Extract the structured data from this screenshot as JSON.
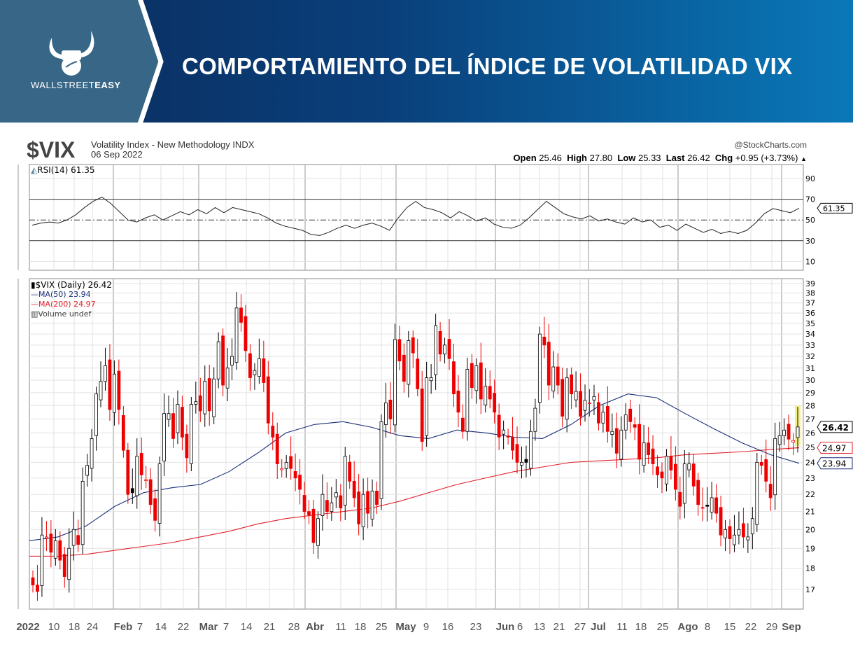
{
  "header": {
    "brand_light": "WALLSTREET",
    "brand_bold": "EASY",
    "title": "COMPORTAMIENTO DEL ÍNDICE DE VOLATILIDAD VIX"
  },
  "chart_info": {
    "symbol": "$VIX",
    "description": "Volatility Index - New Methodology INDX",
    "date": "06 Sep 2022",
    "source": "@StockCharts.com",
    "open_label": "Open",
    "open": "25.46",
    "high_label": "High",
    "high": "27.80",
    "low_label": "Low",
    "low": "25.33",
    "last_label": "Last",
    "last": "26.42",
    "chg_label": "Chg",
    "chg": "+0.95 (+3.73%)",
    "chg_arrow": "▲"
  },
  "colors": {
    "up": "#000000",
    "down": "#ee0000",
    "ma50": "#1a2f7a",
    "ma200": "#e0202a",
    "rsi": "#222222",
    "highlight": "#f3f08a"
  },
  "chart_data": [
    {
      "type": "line",
      "title": "RSI(14) 61.35",
      "legend": "RSI(14) 61.35",
      "ylim": [
        0,
        100
      ],
      "yticks": [
        90,
        70,
        50,
        30,
        10
      ],
      "reference_lines": [
        70,
        50,
        30
      ],
      "last_value": "61.35",
      "values": [
        45,
        47,
        48,
        47,
        50,
        55,
        62,
        68,
        72,
        66,
        58,
        50,
        48,
        52,
        55,
        50,
        54,
        58,
        55,
        60,
        56,
        62,
        57,
        62,
        60,
        58,
        56,
        52,
        47,
        44,
        42,
        40,
        36,
        35,
        38,
        42,
        45,
        42,
        45,
        47,
        44,
        40,
        52,
        62,
        68,
        62,
        60,
        57,
        52,
        58,
        54,
        49,
        52,
        46,
        43,
        42,
        45,
        52,
        60,
        68,
        62,
        56,
        53,
        51,
        54,
        49,
        51,
        48,
        46,
        52,
        48,
        50,
        43,
        45,
        40,
        46,
        42,
        38,
        41,
        37,
        39,
        37,
        40,
        47,
        56,
        61,
        59,
        57,
        61.35
      ]
    },
    {
      "type": "candlestick",
      "title": "$VIX (Daily) 26.42",
      "legend": [
        "$VIX (Daily) 26.42",
        "MA(50) 23.94",
        "MA(200) 24.97",
        "Volume undef"
      ],
      "ylim": [
        16.5,
        39.5
      ],
      "yscale": "log",
      "yticks": [
        39,
        38,
        37,
        36,
        35,
        34,
        33,
        32,
        31,
        30,
        29,
        28,
        27,
        26,
        25,
        24,
        23,
        22,
        21,
        20,
        19,
        18,
        17
      ],
      "xtick_labels": [
        {
          "t": "2022",
          "b": true
        },
        {
          "t": "10"
        },
        {
          "t": "18"
        },
        {
          "t": "24"
        },
        {
          "t": "Feb",
          "b": true
        },
        {
          "t": "7"
        },
        {
          "t": "14"
        },
        {
          "t": "22"
        },
        {
          "t": "Mar",
          "b": true
        },
        {
          "t": "7"
        },
        {
          "t": "14"
        },
        {
          "t": "21"
        },
        {
          "t": "28"
        },
        {
          "t": "Abr",
          "b": true
        },
        {
          "t": "11"
        },
        {
          "t": "18"
        },
        {
          "t": "25"
        },
        {
          "t": "May",
          "b": true
        },
        {
          "t": "9"
        },
        {
          "t": "16"
        },
        {
          "t": "23"
        },
        {
          "t": "Jun",
          "b": true
        },
        {
          "t": "6"
        },
        {
          "t": "13"
        },
        {
          "t": "21"
        },
        {
          "t": "27"
        },
        {
          "t": "Jul",
          "b": true
        },
        {
          "t": "11"
        },
        {
          "t": "18"
        },
        {
          "t": "25"
        },
        {
          "t": "Ago",
          "b": true
        },
        {
          "t": "8"
        },
        {
          "t": "15"
        },
        {
          "t": "22"
        },
        {
          "t": "29"
        },
        {
          "t": "Sep",
          "b": true
        }
      ],
      "close": [
        17.2,
        16.9,
        19.7,
        19.6,
        18.8,
        19.4,
        18.4,
        17.6,
        19.0,
        20.0,
        19.2,
        22.8,
        23.8,
        25.6,
        28.9,
        29.9,
        31.2,
        27.7,
        30.5,
        27.7,
        24.8,
        22.0,
        22.1,
        24.4,
        23.2,
        22.9,
        21.4,
        20.5,
        23.9,
        27.4,
        27.4,
        25.6,
        28.1,
        25.7,
        24.3,
        28.1,
        28.3,
        27.6,
        29.9,
        27.6,
        30.1,
        33.3,
        29.6,
        31.0,
        32.0,
        36.5,
        35.1,
        32.5,
        30.2,
        30.8,
        31.8,
        29.8,
        26.7,
        25.7,
        23.9,
        23.6,
        24.0,
        23.6,
        23.0,
        22.3,
        21.0,
        20.8,
        19.3,
        20.6,
        22.0,
        21.0,
        21.5,
        22.1,
        21.2,
        24.4,
        22.8,
        21.8,
        20.3,
        22.0,
        20.9,
        22.2,
        21.4,
        26.8,
        28.2,
        27.0,
        33.5,
        31.6,
        29.9,
        33.4,
        32.3,
        29.3,
        25.4,
        30.2,
        30.2,
        34.8,
        32.2,
        33.0,
        31.8,
        28.9,
        27.5,
        26.1,
        30.9,
        29.4,
        31.2,
        28.5,
        29.5,
        28.5,
        27.5,
        25.7,
        26.2,
        25.7,
        24.8,
        24.0,
        24.0,
        24.0,
        26.1,
        27.8,
        34.0,
        33.0,
        29.6,
        31.1,
        29.6,
        27.2,
        30.2,
        28.9,
        29.1,
        27.2,
        28.4,
        28.2,
        28.7,
        26.7,
        27.5,
        26.1,
        26.1,
        24.6,
        26.2,
        27.3,
        26.8,
        26.4,
        24.2,
        25.3,
        24.5,
        23.9,
        23.2,
        23.0,
        24.4,
        23.5,
        22.3,
        21.3,
        23.9,
        23.9,
        22.5,
        21.4,
        21.2,
        21.3,
        21.8,
        20.9,
        19.7,
        20.0,
        19.5,
        19.7,
        20.0,
        19.6,
        19.6,
        20.6,
        24.0,
        23.8,
        22.8,
        21.8,
        25.6,
        25.8,
        26.2,
        25.56,
        25.47,
        26.42
      ],
      "ma50": [
        19.4,
        19.6,
        20.2,
        21.3,
        22.1,
        22.4,
        22.6,
        23.4,
        24.6,
        26.0,
        26.6,
        26.8,
        26.4,
        25.8,
        25.6,
        26.2,
        26.0,
        25.7,
        25.6,
        26.6,
        28.0,
        28.9,
        28.6,
        27.4,
        26.3,
        25.3,
        24.5,
        23.94
      ],
      "ma200": [
        18.6,
        18.6,
        18.7,
        18.9,
        19.1,
        19.3,
        19.6,
        19.9,
        20.3,
        20.6,
        20.8,
        21.0,
        21.2,
        21.6,
        22.1,
        22.6,
        23.0,
        23.4,
        23.7,
        24.0,
        24.1,
        24.2,
        24.3,
        24.5,
        24.6,
        24.7,
        24.85,
        24.97
      ],
      "last_value": "26.42",
      "ma50_last": "23.94",
      "ma200_last": "24.97"
    }
  ]
}
